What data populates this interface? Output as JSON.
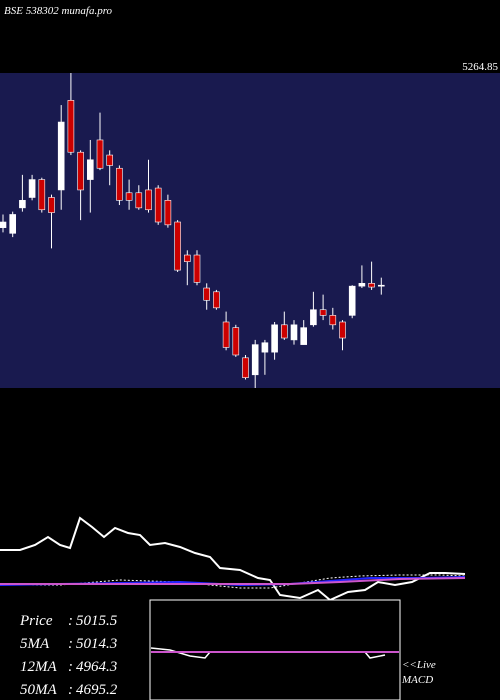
{
  "chart_data": {
    "type": "candlestick",
    "title": "BSE 538302 munafa.pro",
    "price_label": "5264.85",
    "ylim": [
      4926,
      5260
    ],
    "up_color": "#ffffff",
    "down_color": "#cc0000",
    "background": "#191a4f",
    "open": [
      5096,
      5090,
      5117,
      5128,
      5147,
      5128,
      5136,
      5231,
      5176,
      5147,
      5189,
      5173,
      5159,
      5133,
      5133,
      5136,
      5138,
      5125,
      5102,
      5067,
      5067,
      5032,
      5028,
      4996,
      4990,
      4958,
      4940,
      4964,
      4964,
      4993,
      4977,
      4972,
      4993,
      5009,
      5003,
      4996,
      5003,
      5034,
      5037,
      5035
    ],
    "high": [
      5110,
      5113,
      5152,
      5152,
      5149,
      5131,
      5226,
      5260,
      5178,
      5189,
      5218,
      5178,
      5162,
      5147,
      5141,
      5168,
      5141,
      5131,
      5104,
      5072,
      5072,
      5037,
      5030,
      5007,
      4993,
      4961,
      4977,
      4977,
      4996,
      5007,
      4998,
      4998,
      5028,
      5025,
      5011,
      4998,
      5035,
      5056,
      5060,
      5043
    ],
    "low": [
      5091,
      5086,
      5113,
      5125,
      5112,
      5074,
      5115,
      5173,
      5104,
      5112,
      5157,
      5141,
      5120,
      5115,
      5115,
      5112,
      5099,
      5096,
      5049,
      5035,
      5035,
      5009,
      5009,
      4966,
      4959,
      4935,
      4926,
      4940,
      4956,
      4977,
      4972,
      4972,
      4991,
      4998,
      4988,
      4966,
      5000,
      5032,
      5030,
      5025
    ],
    "close": [
      5102,
      5110,
      5125,
      5147,
      5115,
      5112,
      5208,
      5176,
      5136,
      5168,
      5159,
      5162,
      5125,
      5125,
      5117,
      5115,
      5102,
      5099,
      5051,
      5060,
      5038,
      5019,
      5011,
      4969,
      4961,
      4937,
      4972,
      4974,
      4993,
      4979,
      4993,
      4990,
      5009,
      5003,
      4993,
      4979,
      5034,
      5037,
      5033,
      5035
    ],
    "info": [
      {
        "label": "Price",
        "value": "5015.5"
      },
      {
        "label": "5MA",
        "value": "5014.3"
      },
      {
        "label": "12MA",
        "value": "4964.3"
      },
      {
        "label": "50MA",
        "value": "4695.2"
      }
    ],
    "macd_label": "<<Live",
    "macd_title": "MACD"
  }
}
